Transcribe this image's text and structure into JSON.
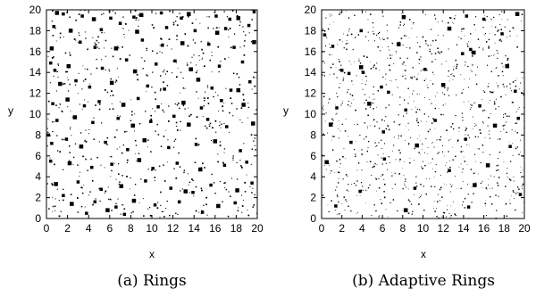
{
  "chart_data": [
    {
      "type": "scatter",
      "caption": "(a) Rings",
      "xlabel": "x",
      "ylabel": "y",
      "xlim": [
        0,
        20
      ],
      "ylim": [
        0,
        20
      ],
      "xticks": [
        0,
        2,
        4,
        6,
        8,
        10,
        12,
        14,
        16,
        18,
        20
      ],
      "yticks": [
        0,
        2,
        4,
        6,
        8,
        10,
        12,
        14,
        16,
        18,
        20
      ],
      "grid": false,
      "legend": "none",
      "point_color": "#000000",
      "points": [
        [
          1.0,
          19.7
        ],
        [
          1.6,
          19.6
        ],
        [
          3.4,
          19.4
        ],
        [
          4.5,
          19.1
        ],
        [
          6.1,
          19.2
        ],
        [
          8.3,
          19.3
        ],
        [
          9.0,
          19.5
        ],
        [
          10.9,
          19.7
        ],
        [
          12.8,
          19.2
        ],
        [
          13.5,
          19.6
        ],
        [
          16.1,
          19.4
        ],
        [
          17.4,
          19.1
        ],
        [
          18.2,
          19.2
        ],
        [
          19.7,
          19.8
        ],
        [
          0.7,
          18.4
        ],
        [
          2.3,
          18.0
        ],
        [
          5.2,
          18.1
        ],
        [
          7.0,
          18.7
        ],
        [
          8.6,
          17.9
        ],
        [
          11.4,
          18.3
        ],
        [
          14.1,
          18.0
        ],
        [
          16.2,
          17.8
        ],
        [
          17.0,
          18.2
        ],
        [
          19.2,
          18.5
        ],
        [
          0.5,
          16.3
        ],
        [
          3.2,
          16.9
        ],
        [
          4.6,
          16.4
        ],
        [
          6.6,
          16.3
        ],
        [
          9.1,
          17.1
        ],
        [
          11.0,
          16.6
        ],
        [
          12.9,
          16.8
        ],
        [
          15.4,
          16.7
        ],
        [
          17.8,
          16.4
        ],
        [
          19.7,
          16.9
        ],
        [
          0.4,
          14.9
        ],
        [
          0.8,
          14.2
        ],
        [
          2.1,
          14.6
        ],
        [
          5.3,
          14.4
        ],
        [
          7.6,
          15.2
        ],
        [
          8.4,
          14.1
        ],
        [
          10.4,
          14.8
        ],
        [
          12.2,
          15.1
        ],
        [
          13.7,
          14.3
        ],
        [
          16.4,
          14.6
        ],
        [
          18.6,
          15.0
        ],
        [
          1.3,
          12.9
        ],
        [
          2.8,
          13.2
        ],
        [
          4.1,
          12.6
        ],
        [
          6.2,
          13.0
        ],
        [
          9.6,
          12.7
        ],
        [
          11.2,
          12.4
        ],
        [
          14.4,
          13.3
        ],
        [
          15.7,
          12.5
        ],
        [
          17.5,
          12.3
        ],
        [
          18.2,
          12.3
        ],
        [
          19.3,
          13.1
        ],
        [
          0.6,
          11.0
        ],
        [
          2.0,
          11.4
        ],
        [
          3.6,
          10.8
        ],
        [
          5.0,
          11.2
        ],
        [
          7.3,
          10.9
        ],
        [
          8.7,
          11.5
        ],
        [
          10.6,
          10.7
        ],
        [
          13.0,
          11.1
        ],
        [
          14.7,
          10.6
        ],
        [
          16.6,
          11.3
        ],
        [
          18.7,
          10.9
        ],
        [
          0.2,
          8.0
        ],
        [
          1.0,
          9.4
        ],
        [
          2.7,
          9.7
        ],
        [
          4.4,
          9.2
        ],
        [
          6.8,
          9.6
        ],
        [
          8.2,
          8.9
        ],
        [
          9.9,
          9.3
        ],
        [
          12.1,
          9.8
        ],
        [
          13.5,
          9.0
        ],
        [
          15.3,
          9.5
        ],
        [
          17.1,
          8.8
        ],
        [
          19.6,
          9.1
        ],
        [
          0.5,
          7.2
        ],
        [
          1.9,
          7.6
        ],
        [
          3.3,
          6.9
        ],
        [
          5.6,
          7.3
        ],
        [
          7.7,
          6.6
        ],
        [
          9.3,
          7.5
        ],
        [
          11.6,
          6.8
        ],
        [
          14.2,
          7.1
        ],
        [
          16.0,
          7.4
        ],
        [
          18.4,
          6.5
        ],
        [
          0.4,
          5.5
        ],
        [
          2.2,
          5.3
        ],
        [
          4.3,
          4.9
        ],
        [
          6.2,
          5.2
        ],
        [
          8.8,
          5.6
        ],
        [
          10.1,
          4.8
        ],
        [
          12.4,
          5.3
        ],
        [
          14.6,
          4.7
        ],
        [
          16.9,
          5.1
        ],
        [
          19.0,
          5.4
        ],
        [
          0.9,
          3.3
        ],
        [
          3.0,
          3.5
        ],
        [
          5.2,
          2.8
        ],
        [
          7.1,
          3.1
        ],
        [
          9.4,
          3.6
        ],
        [
          11.8,
          2.9
        ],
        [
          13.2,
          2.6
        ],
        [
          13.9,
          2.5
        ],
        [
          15.6,
          3.2
        ],
        [
          18.1,
          2.7
        ],
        [
          19.5,
          3.4
        ],
        [
          1.6,
          2.2
        ],
        [
          2.4,
          1.4
        ],
        [
          4.6,
          1.6
        ],
        [
          6.6,
          1.1
        ],
        [
          8.3,
          1.7
        ],
        [
          10.3,
          1.3
        ],
        [
          12.6,
          1.6
        ],
        [
          16.3,
          1.2
        ],
        [
          17.9,
          1.5
        ],
        [
          3.8,
          0.5
        ],
        [
          5.8,
          0.8
        ],
        [
          7.4,
          0.4
        ],
        [
          14.8,
          0.6
        ]
      ]
    },
    {
      "type": "scatter",
      "caption": "(b) Adaptive Rings",
      "xlabel": "x",
      "ylabel": "y",
      "xlim": [
        0,
        20
      ],
      "ylim": [
        0,
        20
      ],
      "xticks": [
        0,
        2,
        4,
        6,
        8,
        10,
        12,
        14,
        16,
        18,
        20
      ],
      "yticks": [
        0,
        2,
        4,
        6,
        8,
        10,
        12,
        14,
        16,
        18,
        20
      ],
      "grid": false,
      "legend": "none",
      "point_color": "#000000",
      "points": [
        [
          8.1,
          19.3
        ],
        [
          14.3,
          19.4
        ],
        [
          16.0,
          19.1
        ],
        [
          19.3,
          19.6
        ],
        [
          0.3,
          17.6
        ],
        [
          3.9,
          18.0
        ],
        [
          12.6,
          18.2
        ],
        [
          17.8,
          17.7
        ],
        [
          1.1,
          16.5
        ],
        [
          7.6,
          16.7
        ],
        [
          13.9,
          15.8
        ],
        [
          14.7,
          16.2
        ],
        [
          15.0,
          15.9
        ],
        [
          2.0,
          14.2
        ],
        [
          2.7,
          13.9
        ],
        [
          3.9,
          14.5
        ],
        [
          4.1,
          14.0
        ],
        [
          10.2,
          14.3
        ],
        [
          18.3,
          14.6
        ],
        [
          5.9,
          12.6
        ],
        [
          6.6,
          12.1
        ],
        [
          12.0,
          12.8
        ],
        [
          19.1,
          12.2
        ],
        [
          1.5,
          10.6
        ],
        [
          4.7,
          11.0
        ],
        [
          8.3,
          10.4
        ],
        [
          15.6,
          10.8
        ],
        [
          0.9,
          9.0
        ],
        [
          6.1,
          8.3
        ],
        [
          11.2,
          9.4
        ],
        [
          17.1,
          8.9
        ],
        [
          19.4,
          9.6
        ],
        [
          2.9,
          7.3
        ],
        [
          9.4,
          7.0
        ],
        [
          14.2,
          7.6
        ],
        [
          18.6,
          6.9
        ],
        [
          0.5,
          5.4
        ],
        [
          6.2,
          5.7
        ],
        [
          12.6,
          4.6
        ],
        [
          16.4,
          5.1
        ],
        [
          3.8,
          2.6
        ],
        [
          9.2,
          2.9
        ],
        [
          15.1,
          3.2
        ],
        [
          19.6,
          2.3
        ],
        [
          1.4,
          1.2
        ],
        [
          8.3,
          0.8
        ],
        [
          14.5,
          1.1
        ]
      ]
    }
  ]
}
